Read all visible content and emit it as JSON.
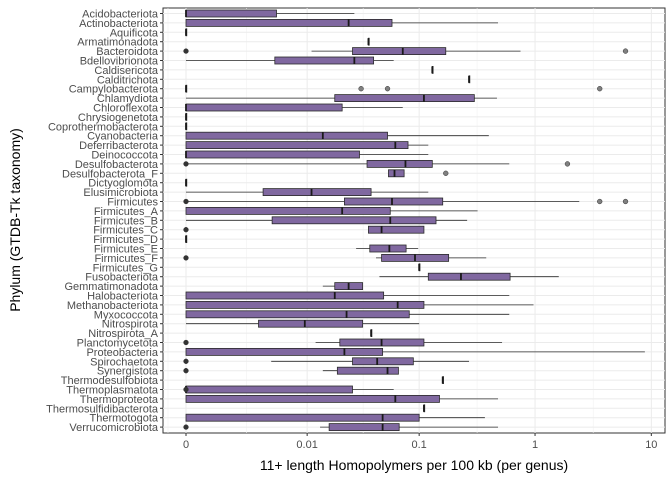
{
  "chart_data": {
    "type": "boxplot",
    "orientation": "horizontal",
    "xlabel": "11+ length Homopolymers per 100 kb (per genus)",
    "ylabel": "Phylum (GTDB-Tk taxonomy)",
    "x_scale": "pseudo-log",
    "x_ticks": [
      "0",
      "0.01",
      "0.1",
      "1",
      "10"
    ],
    "x_tick_values": [
      0,
      0.01,
      0.1,
      1,
      10
    ],
    "grid": true,
    "box_fill": "#8068A0",
    "box_edge": "#2b2b2b",
    "outlier_fill": "#808080",
    "categories": [
      "Acidobacteriota",
      "Actinobacteriota",
      "Aquificota",
      "Armatimonadota",
      "Bacteroidota",
      "Bdellovibrionota",
      "Caldisericota",
      "Calditrichota",
      "Campylobacterota",
      "Chlamydiota",
      "Chloroflexota",
      "Chrysiogenetota",
      "Coprothermobacterota",
      "Cyanobacteria",
      "Deferribacterota",
      "Deinococcota",
      "Desulfobacterota",
      "Desulfobacterota_F",
      "Dictyoglomota",
      "Elusimicrobiota",
      "Firmicutes",
      "Firmicutes_A",
      "Firmicutes_B",
      "Firmicutes_C",
      "Firmicutes_D",
      "Firmicutes_E",
      "Firmicutes_F",
      "Firmicutes_G",
      "Fusobacteriota",
      "Gemmatimonadota",
      "Halobacteriota",
      "Methanobacteriota",
      "Myxococcota",
      "Nitrospirota",
      "Nitrospirota_A",
      "Planctomycetota",
      "Proteobacteria",
      "Spirochaetota",
      "Synergistota",
      "Thermodesulfobiota",
      "Thermoplasmatota",
      "Thermoproteota",
      "Thermosulfidibacterota",
      "Thermotogota",
      "Verrucomicrobiota"
    ],
    "boxes": [
      {
        "min": 0,
        "q1": 0,
        "median": 0,
        "q3": 0.005,
        "max": 0.027,
        "outliers": []
      },
      {
        "min": 0,
        "q1": 0,
        "median": 0.024,
        "q3": 0.058,
        "max": 0.48,
        "outliers": []
      },
      {
        "min": 0,
        "q1": 0,
        "median": 0,
        "q3": 0,
        "max": 0,
        "outliers": []
      },
      {
        "min": 0.036,
        "q1": 0.036,
        "median": 0.036,
        "q3": 0.036,
        "max": 0.036,
        "outliers": []
      },
      {
        "min": 0.011,
        "q1": 0.026,
        "median": 0.072,
        "q3": 0.17,
        "max": 0.75,
        "outliers": [
          0,
          6.0
        ]
      },
      {
        "min": 0,
        "q1": 0.0048,
        "median": 0.027,
        "q3": 0.04,
        "max": 0.06,
        "outliers": []
      },
      {
        "min": 0.13,
        "q1": 0.13,
        "median": 0.13,
        "q3": 0.13,
        "max": 0.13,
        "outliers": []
      },
      {
        "min": 0.27,
        "q1": 0.27,
        "median": 0.27,
        "q3": 0.27,
        "max": 0.27,
        "outliers": []
      },
      {
        "min": 0,
        "q1": 0,
        "median": 0,
        "q3": 0,
        "max": 0,
        "outliers": [
          0.031,
          0.053,
          3.6
        ]
      },
      {
        "min": 0,
        "q1": 0.018,
        "median": 0.11,
        "q3": 0.3,
        "max": 0.47,
        "outliers": []
      },
      {
        "min": 0,
        "q1": 0,
        "median": 0,
        "q3": 0.021,
        "max": 0.072,
        "outliers": []
      },
      {
        "min": 0,
        "q1": 0,
        "median": 0,
        "q3": 0,
        "max": 0,
        "outliers": []
      },
      {
        "min": 0,
        "q1": 0,
        "median": 0,
        "q3": 0,
        "max": 0,
        "outliers": []
      },
      {
        "min": 0,
        "q1": 0,
        "median": 0.014,
        "q3": 0.053,
        "max": 0.4,
        "outliers": []
      },
      {
        "min": 0,
        "q1": 0,
        "median": 0.062,
        "q3": 0.08,
        "max": 0.12,
        "outliers": []
      },
      {
        "min": 0,
        "q1": 0,
        "median": 0,
        "q3": 0.03,
        "max": 0.12,
        "outliers": []
      },
      {
        "min": 0,
        "q1": 0.035,
        "median": 0.076,
        "q3": 0.13,
        "max": 0.6,
        "outliers": [
          0,
          1.9
        ]
      },
      {
        "min": 0.054,
        "q1": 0.054,
        "median": 0.061,
        "q3": 0.074,
        "max": 0.074,
        "outliers": [
          0.17
        ]
      },
      {
        "min": 0,
        "q1": 0,
        "median": 0,
        "q3": 0,
        "max": 0,
        "outliers": []
      },
      {
        "min": 0,
        "q1": 0.0036,
        "median": 0.011,
        "q3": 0.038,
        "max": 0.12,
        "outliers": []
      },
      {
        "min": 0,
        "q1": 0.022,
        "median": 0.058,
        "q3": 0.16,
        "max": 2.4,
        "outliers": [
          0,
          3.6,
          6.0
        ]
      },
      {
        "min": 0,
        "q1": 0,
        "median": 0.021,
        "q3": 0.056,
        "max": 0.32,
        "outliers": []
      },
      {
        "min": 0,
        "q1": 0.0045,
        "median": 0.056,
        "q3": 0.14,
        "max": 0.26,
        "outliers": []
      },
      {
        "min": 0.036,
        "q1": 0.036,
        "median": 0.047,
        "q3": 0.11,
        "max": 0.11,
        "outliers": [
          0
        ]
      },
      {
        "min": 0,
        "q1": 0,
        "median": 0,
        "q3": 0,
        "max": 0,
        "outliers": []
      },
      {
        "min": 0.028,
        "q1": 0.037,
        "median": 0.055,
        "q3": 0.077,
        "max": 0.098,
        "outliers": []
      },
      {
        "min": 0.042,
        "q1": 0.047,
        "median": 0.092,
        "q3": 0.18,
        "max": 0.38,
        "outliers": [
          0
        ]
      },
      {
        "min": 0.1,
        "q1": 0.1,
        "median": 0.1,
        "q3": 0.1,
        "max": 0.1,
        "outliers": []
      },
      {
        "min": 0.045,
        "q1": 0.12,
        "median": 0.23,
        "q3": 0.61,
        "max": 1.6,
        "outliers": []
      },
      {
        "min": 0.014,
        "q1": 0.018,
        "median": 0.024,
        "q3": 0.032,
        "max": 0.032,
        "outliers": []
      },
      {
        "min": 0,
        "q1": 0,
        "median": 0.018,
        "q3": 0.049,
        "max": 0.6,
        "outliers": []
      },
      {
        "min": 0,
        "q1": 0,
        "median": 0.065,
        "q3": 0.11,
        "max": 0.97,
        "outliers": []
      },
      {
        "min": 0,
        "q1": 0,
        "median": 0.023,
        "q3": 0.082,
        "max": 0.6,
        "outliers": []
      },
      {
        "min": 0,
        "q1": 0.0032,
        "median": 0.0095,
        "q3": 0.032,
        "max": 0.1,
        "outliers": []
      },
      {
        "min": 0.038,
        "q1": 0.038,
        "median": 0.038,
        "q3": 0.038,
        "max": 0.038,
        "outliers": []
      },
      {
        "min": 0.012,
        "q1": 0.02,
        "median": 0.047,
        "q3": 0.11,
        "max": 0.52,
        "outliers": [
          0
        ]
      },
      {
        "min": 0,
        "q1": 0,
        "median": 0.022,
        "q3": 0.048,
        "max": 8.8,
        "outliers": []
      },
      {
        "min": 0.0044,
        "q1": 0.026,
        "median": 0.043,
        "q3": 0.089,
        "max": 0.27,
        "outliers": [
          0
        ]
      },
      {
        "min": 0.014,
        "q1": 0.019,
        "median": 0.053,
        "q3": 0.066,
        "max": 0.066,
        "outliers": [
          0
        ]
      },
      {
        "min": 0.16,
        "q1": 0.16,
        "median": 0.16,
        "q3": 0.16,
        "max": 0.16,
        "outliers": []
      },
      {
        "min": 0,
        "q1": 0,
        "median": 0,
        "q3": 0.026,
        "max": 0.06,
        "outliers": [
          0
        ]
      },
      {
        "min": 0,
        "q1": 0,
        "median": 0.062,
        "q3": 0.15,
        "max": 0.48,
        "outliers": []
      },
      {
        "min": 0.11,
        "q1": 0.11,
        "median": 0.11,
        "q3": 0.11,
        "max": 0.11,
        "outliers": []
      },
      {
        "min": 0,
        "q1": 0,
        "median": 0.048,
        "q3": 0.1,
        "max": 0.37,
        "outliers": []
      },
      {
        "min": 0.0132,
        "q1": 0.016,
        "median": 0.048,
        "q3": 0.067,
        "max": 0.48,
        "outliers": [
          0
        ]
      }
    ]
  }
}
